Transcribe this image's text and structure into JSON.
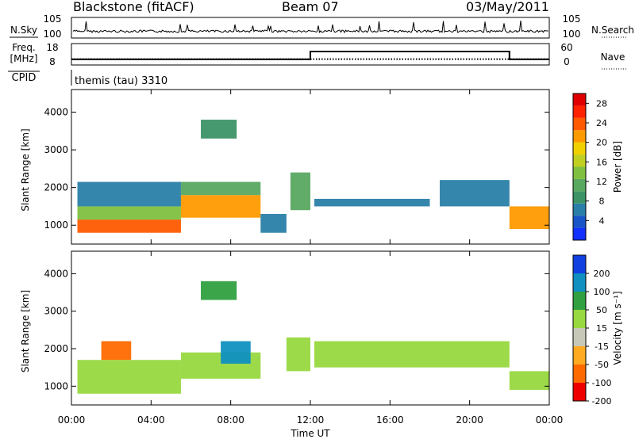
{
  "header": {
    "title": "Blackstone (fitACF)",
    "beam": "Beam 07",
    "date": "03/May/2011"
  },
  "side_labels": {
    "nsky": "N.Sky",
    "nsearch": "N.Search",
    "freq": "Freq.",
    "freq_unit": "[MHz]",
    "nave": "Nave",
    "cpid": "CPID",
    "cpid_value": "themis (tau) 3310"
  },
  "colors": {
    "power": [
      "#1230ff",
      "#1a55c8",
      "#2a7fa8",
      "#3c9466",
      "#58a860",
      "#80c040",
      "#c0d020",
      "#f0d000",
      "#ff9a00",
      "#ff5a00",
      "#ff2200",
      "#e00000"
    ],
    "velocity": [
      "#ee0000",
      "#ff6a00",
      "#ffaa20",
      "#c8c8b8",
      "#98d840",
      "#30a040",
      "#1090c0",
      "#1040e0"
    ]
  },
  "chart_data": [
    {
      "type": "line",
      "panel": "noise",
      "ylabel": "N.Sky",
      "y2label": "N.Search",
      "yticks": [
        "10^5",
        "10^0"
      ],
      "y2ticks": [
        "10^5",
        "10^0"
      ],
      "series": [
        {
          "name": "N.Sky",
          "x": [
            0,
            24
          ],
          "y": [
            2,
            2
          ]
        }
      ]
    },
    {
      "type": "line",
      "panel": "frequency",
      "ylabel": "Freq. [MHz]",
      "y2label": "Nave",
      "yticks": [
        "18",
        "8"
      ],
      "ylim": [
        8,
        18
      ],
      "y2ticks": [
        "60",
        "0"
      ],
      "y2lim": [
        0,
        60
      ],
      "series": [
        {
          "name": "Freq.",
          "x": [
            0,
            12,
            12,
            22,
            22,
            24
          ],
          "y": [
            10.2,
            10.2,
            14.5,
            14.5,
            10.2,
            10.2
          ]
        },
        {
          "name": "Nave",
          "x": [
            0,
            24
          ],
          "y": [
            14,
            14
          ]
        }
      ]
    },
    {
      "type": "heatmap",
      "panel": "power",
      "ylabel": "Slant Range [km]",
      "ylim": [
        500,
        4600
      ],
      "yticks": [
        1000,
        2000,
        3000,
        4000
      ],
      "colorbar_label": "Power [dB]",
      "colorbar_ticks": [
        4,
        8,
        12,
        16,
        20,
        24,
        28
      ],
      "colorbar_range": [
        0,
        30
      ],
      "regions": [
        {
          "t0": 0.3,
          "t1": 5.5,
          "r0": 800,
          "r1": 1150,
          "value": 24
        },
        {
          "t0": 0.3,
          "t1": 5.5,
          "r0": 1150,
          "r1": 1500,
          "value": 14
        },
        {
          "t0": 0.3,
          "t1": 5.5,
          "r0": 1500,
          "r1": 2150,
          "value": 6
        },
        {
          "t0": 5.5,
          "t1": 9.5,
          "r0": 1200,
          "r1": 1800,
          "value": 22
        },
        {
          "t0": 5.5,
          "t1": 9.5,
          "r0": 1800,
          "r1": 2150,
          "value": 10
        },
        {
          "t0": 9.5,
          "t1": 10.8,
          "r0": 800,
          "r1": 1300,
          "value": 6
        },
        {
          "t0": 6.5,
          "t1": 8.3,
          "r0": 3300,
          "r1": 3800,
          "value": 8
        },
        {
          "t0": 11.0,
          "t1": 12.0,
          "r0": 1400,
          "r1": 2400,
          "value": 12
        },
        {
          "t0": 12.2,
          "t1": 18.0,
          "r0": 1500,
          "r1": 1700,
          "value": 5
        },
        {
          "t0": 18.5,
          "t1": 22.0,
          "r0": 1500,
          "r1": 2200,
          "value": 7
        },
        {
          "t0": 22.0,
          "t1": 24.0,
          "r0": 900,
          "r1": 1500,
          "value": 20
        }
      ]
    },
    {
      "type": "heatmap",
      "panel": "velocity",
      "ylabel": "Slant Range [km]",
      "ylim": [
        500,
        4600
      ],
      "yticks": [
        1000,
        2000,
        3000,
        4000
      ],
      "colorbar_label": "Velocity [m s^-1]",
      "colorbar_ticks": [
        200,
        100,
        50,
        15,
        -15,
        -50,
        -100,
        -200
      ],
      "colorbar_range": [
        -250,
        250
      ],
      "regions": [
        {
          "t0": 0.3,
          "t1": 5.5,
          "r0": 800,
          "r1": 1700,
          "value": 0
        },
        {
          "t0": 1.5,
          "t1": 3.0,
          "r0": 1700,
          "r1": 2200,
          "value": -150
        },
        {
          "t0": 5.5,
          "t1": 9.5,
          "r0": 1200,
          "r1": 1900,
          "value": 0
        },
        {
          "t0": 7.5,
          "t1": 9.0,
          "r0": 1600,
          "r1": 2200,
          "value": 150
        },
        {
          "t0": 6.5,
          "t1": 8.3,
          "r0": 3300,
          "r1": 3800,
          "value": 120
        },
        {
          "t0": 10.8,
          "t1": 12.0,
          "r0": 1400,
          "r1": 2300,
          "value": 30
        },
        {
          "t0": 12.2,
          "t1": 22.0,
          "r0": 1500,
          "r1": 2200,
          "value": 0
        },
        {
          "t0": 22.0,
          "t1": 24.0,
          "r0": 900,
          "r1": 1400,
          "value": 0
        }
      ]
    }
  ],
  "x_axis": {
    "label": "Time UT",
    "ticks": [
      "00:00",
      "04:00",
      "08:00",
      "12:00",
      "16:00",
      "20:00",
      "00:00"
    ],
    "range": [
      0,
      24
    ]
  }
}
